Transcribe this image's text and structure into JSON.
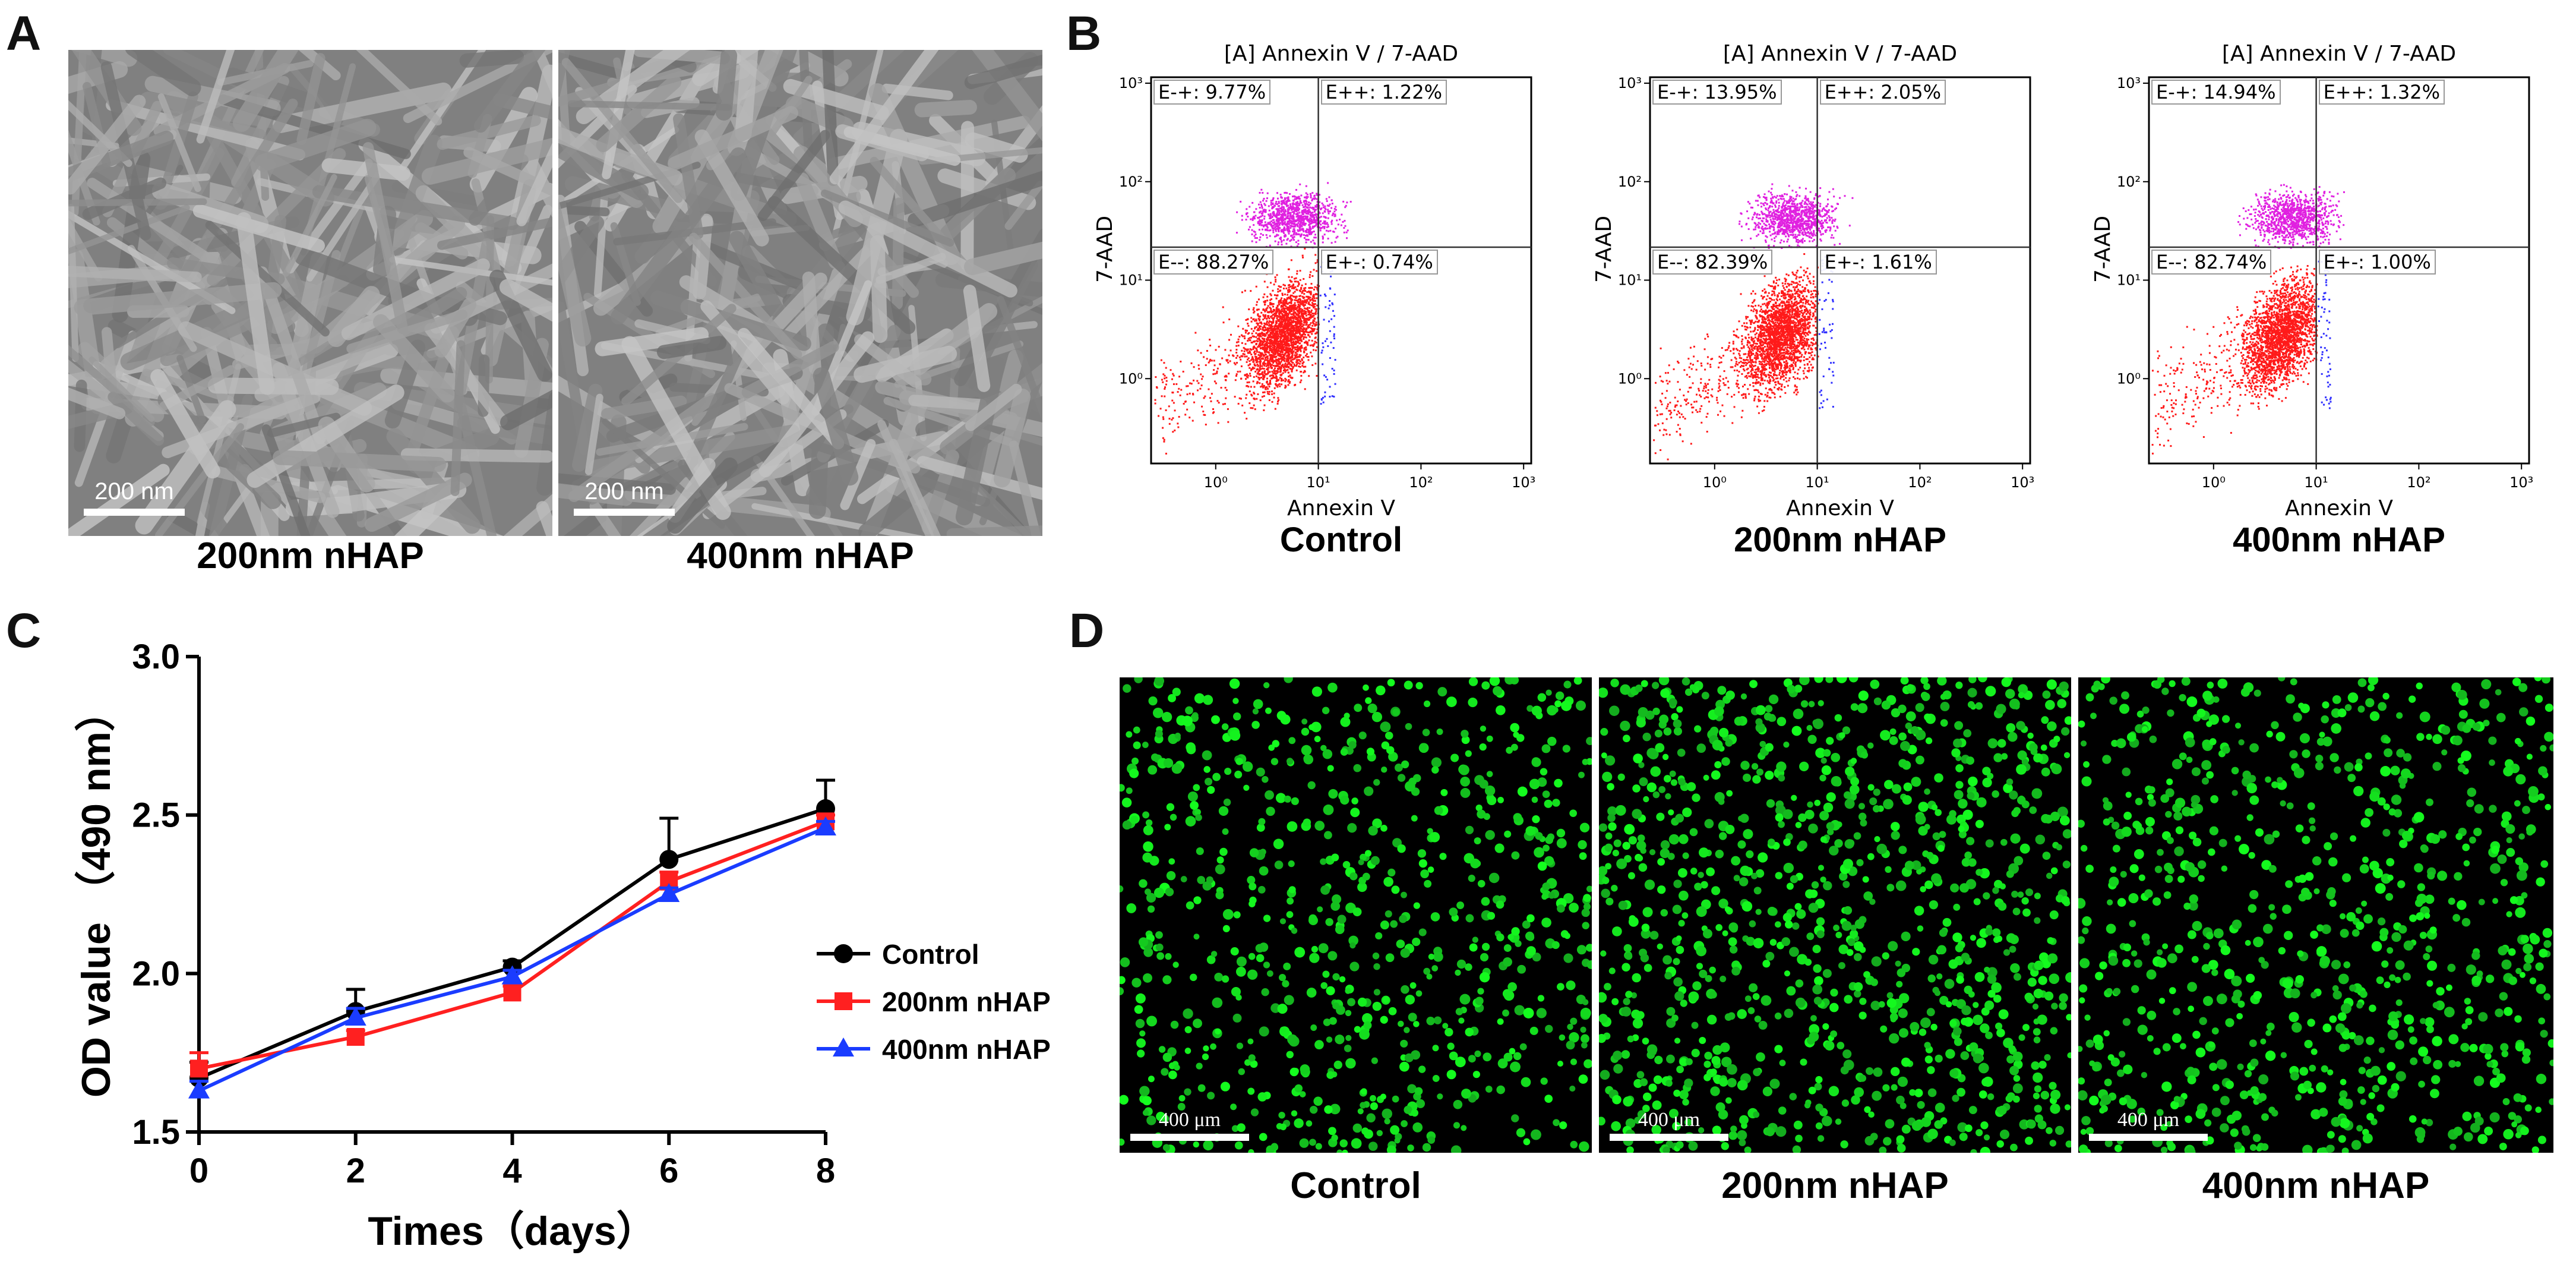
{
  "panels": {
    "A": {
      "letter": "A",
      "images": [
        {
          "caption": "200nm nHAP",
          "scale": "200 nm"
        },
        {
          "caption": "400nm nHAP",
          "scale": "200 nm"
        }
      ]
    },
    "B": {
      "letter": "B",
      "plots": [
        {
          "title": "[A] Annexin V / 7-AAD",
          "xlabel": "Annexin V",
          "ylabel": "7-AAD",
          "caption": "Control",
          "quadrants": {
            "ul": "E-+: 9.77%",
            "ur": "E++: 1.22%",
            "ll": "E--: 88.27%",
            "lr": "E+-: 0.74%"
          }
        },
        {
          "title": "[A] Annexin V / 7-AAD",
          "xlabel": "Annexin V",
          "ylabel": "7-AAD",
          "caption": "200nm nHAP",
          "quadrants": {
            "ul": "E-+: 13.95%",
            "ur": "E++: 2.05%",
            "ll": "E--: 82.39%",
            "lr": "E+-: 1.61%"
          }
        },
        {
          "title": "[A] Annexin V / 7-AAD",
          "xlabel": "Annexin V",
          "ylabel": "7-AAD",
          "caption": "400nm nHAP",
          "quadrants": {
            "ul": "E-+: 14.94%",
            "ur": "E++: 1.32%",
            "ll": "E--: 82.74%",
            "lr": "E+-: 1.00%"
          }
        }
      ],
      "x_ticks": [
        "10⁰",
        "10¹",
        "10²",
        "10³"
      ],
      "y_ticks": [
        "10³",
        "10²",
        "10¹",
        "10⁰"
      ],
      "colors": {
        "live": "#ff1a1a",
        "dead": "#e020e0",
        "early": "#3030ff"
      }
    },
    "C": {
      "letter": "C"
    },
    "D": {
      "letter": "D",
      "images": [
        {
          "caption": "Control",
          "scale": "400 μm"
        },
        {
          "caption": "200nm nHAP",
          "scale": "400 μm"
        },
        {
          "caption": "400nm nHAP",
          "scale": "400 μm"
        }
      ]
    }
  },
  "chart_data": {
    "type": "line",
    "title": "",
    "xlabel": "Times（days）",
    "ylabel": "OD value （490 nm）",
    "x": [
      0,
      2,
      4,
      6,
      8
    ],
    "xlim": [
      0,
      8
    ],
    "ylim": [
      1.5,
      3.0
    ],
    "x_ticks": [
      "0",
      "2",
      "4",
      "6",
      "8"
    ],
    "y_ticks": [
      "1.5",
      "2.0",
      "2.5",
      "3.0"
    ],
    "legend_position": "right",
    "series": [
      {
        "name": "Control",
        "values": [
          1.67,
          1.88,
          2.02,
          2.36,
          2.52
        ],
        "errors": [
          0.05,
          0.07,
          0.02,
          0.13,
          0.09
        ],
        "color": "#000000",
        "marker": "circle"
      },
      {
        "name": "200nm nHAP",
        "values": [
          1.7,
          1.8,
          1.94,
          2.29,
          2.48
        ],
        "errors": [
          0.05,
          0.02,
          0.02,
          0.03,
          0.02
        ],
        "color": "#ff2020",
        "marker": "square"
      },
      {
        "name": "400nm nHAP",
        "values": [
          1.63,
          1.86,
          1.99,
          2.25,
          2.46
        ],
        "errors": [
          0.03,
          0.03,
          0.02,
          0.02,
          0.02
        ],
        "color": "#1a3cff",
        "marker": "triangle"
      }
    ]
  }
}
